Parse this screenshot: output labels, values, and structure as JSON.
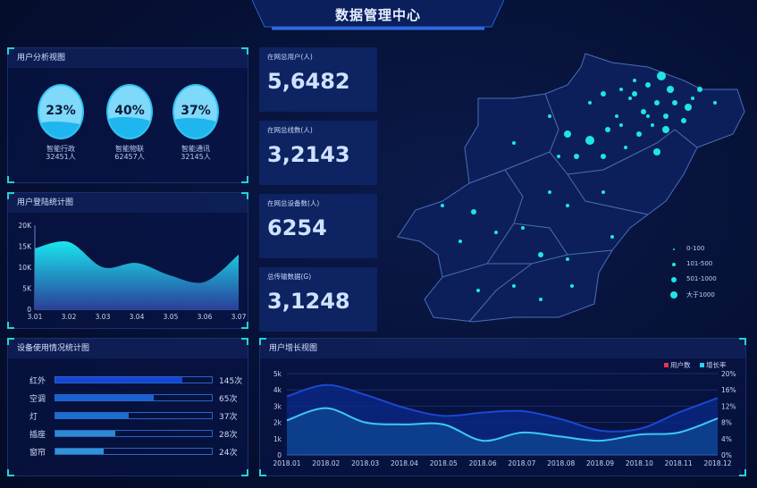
{
  "header": {
    "title": "数据管理中心"
  },
  "user_analysis": {
    "title": "用户分析视图",
    "items": [
      {
        "percent": "23%",
        "fill": 0.23,
        "name": "智能行政",
        "count": "32451人"
      },
      {
        "percent": "40%",
        "fill": 0.4,
        "name": "智能物联",
        "count": "62457人"
      },
      {
        "percent": "37%",
        "fill": 0.37,
        "name": "智能通讯",
        "count": "32145人"
      }
    ]
  },
  "login_chart": {
    "title": "用户登陆统计图"
  },
  "device_usage": {
    "title": "设备使用情况统计图",
    "items": [
      {
        "name": "红外",
        "count": "145次",
        "fill": 0.81,
        "color": "#1446d8"
      },
      {
        "name": "空调",
        "count": "65次",
        "fill": 0.63,
        "color": "#1a62d0"
      },
      {
        "name": "灯",
        "count": "37次",
        "fill": 0.47,
        "color": "#1b6fcc"
      },
      {
        "name": "插座",
        "count": "28次",
        "fill": 0.38,
        "color": "#2a8bd0"
      },
      {
        "name": "窗帘",
        "count": "24次",
        "fill": 0.31,
        "color": "#2f95d4"
      }
    ]
  },
  "stats": [
    {
      "label": "在网总用户(人)",
      "value": "5,6482"
    },
    {
      "label": "在网总线数(人)",
      "value": "3,2143"
    },
    {
      "label": "在网总设备数(人)",
      "value": "6254"
    },
    {
      "label": "总传输数据(G)",
      "value": "3,1248"
    }
  ],
  "map": {
    "legend": [
      {
        "label": "0-100"
      },
      {
        "label": "101-500"
      },
      {
        "label": "501-1000"
      },
      {
        "label": "大于1000"
      }
    ],
    "dot_color": "#1ee6e6"
  },
  "growth": {
    "title": "用户增长视图"
  },
  "chart_data": [
    {
      "type": "area",
      "title": "用户登陆统计图",
      "categories": [
        "3.01",
        "3.02",
        "3.03",
        "3.04",
        "3.05",
        "3.06",
        "3.07"
      ],
      "values": [
        14500,
        16000,
        10000,
        11000,
        8000,
        6500,
        13000
      ],
      "ylim": [
        0,
        20000
      ],
      "yticks": [
        "0",
        "5K",
        "10K",
        "15K",
        "20K"
      ]
    },
    {
      "type": "area",
      "title": "用户增长视图",
      "categories": [
        "2018.01",
        "2018.02",
        "2018.03",
        "2018.04",
        "2018.05",
        "2018.06",
        "2018.07",
        "2018.08",
        "2018.09",
        "2018.10",
        "2018.11",
        "2018.12"
      ],
      "series": [
        {
          "name": "用户数",
          "axis": "left",
          "color": "#e8344e",
          "line_color": "#1a48d0",
          "values": [
            3600,
            4300,
            3700,
            2900,
            2400,
            2600,
            2700,
            2200,
            1500,
            1600,
            2600,
            3500
          ]
        },
        {
          "name": "增长率",
          "axis": "right",
          "color": "#2ad0f0",
          "line_color": "#3cc8f5",
          "values": [
            8.5,
            11.5,
            8,
            7.5,
            7.5,
            3.5,
            5.5,
            4.5,
            3.5,
            5,
            5.5,
            9
          ]
        }
      ],
      "ylim_left": [
        0,
        5000
      ],
      "yticks_left": [
        "0",
        "1k",
        "2k",
        "3k",
        "4k",
        "5k"
      ],
      "ylim_right": [
        0,
        20
      ],
      "yticks_right": [
        "0%",
        "4%",
        "8%",
        "12%",
        "16%",
        "20%"
      ],
      "legend": "top-right",
      "grid": true
    }
  ]
}
